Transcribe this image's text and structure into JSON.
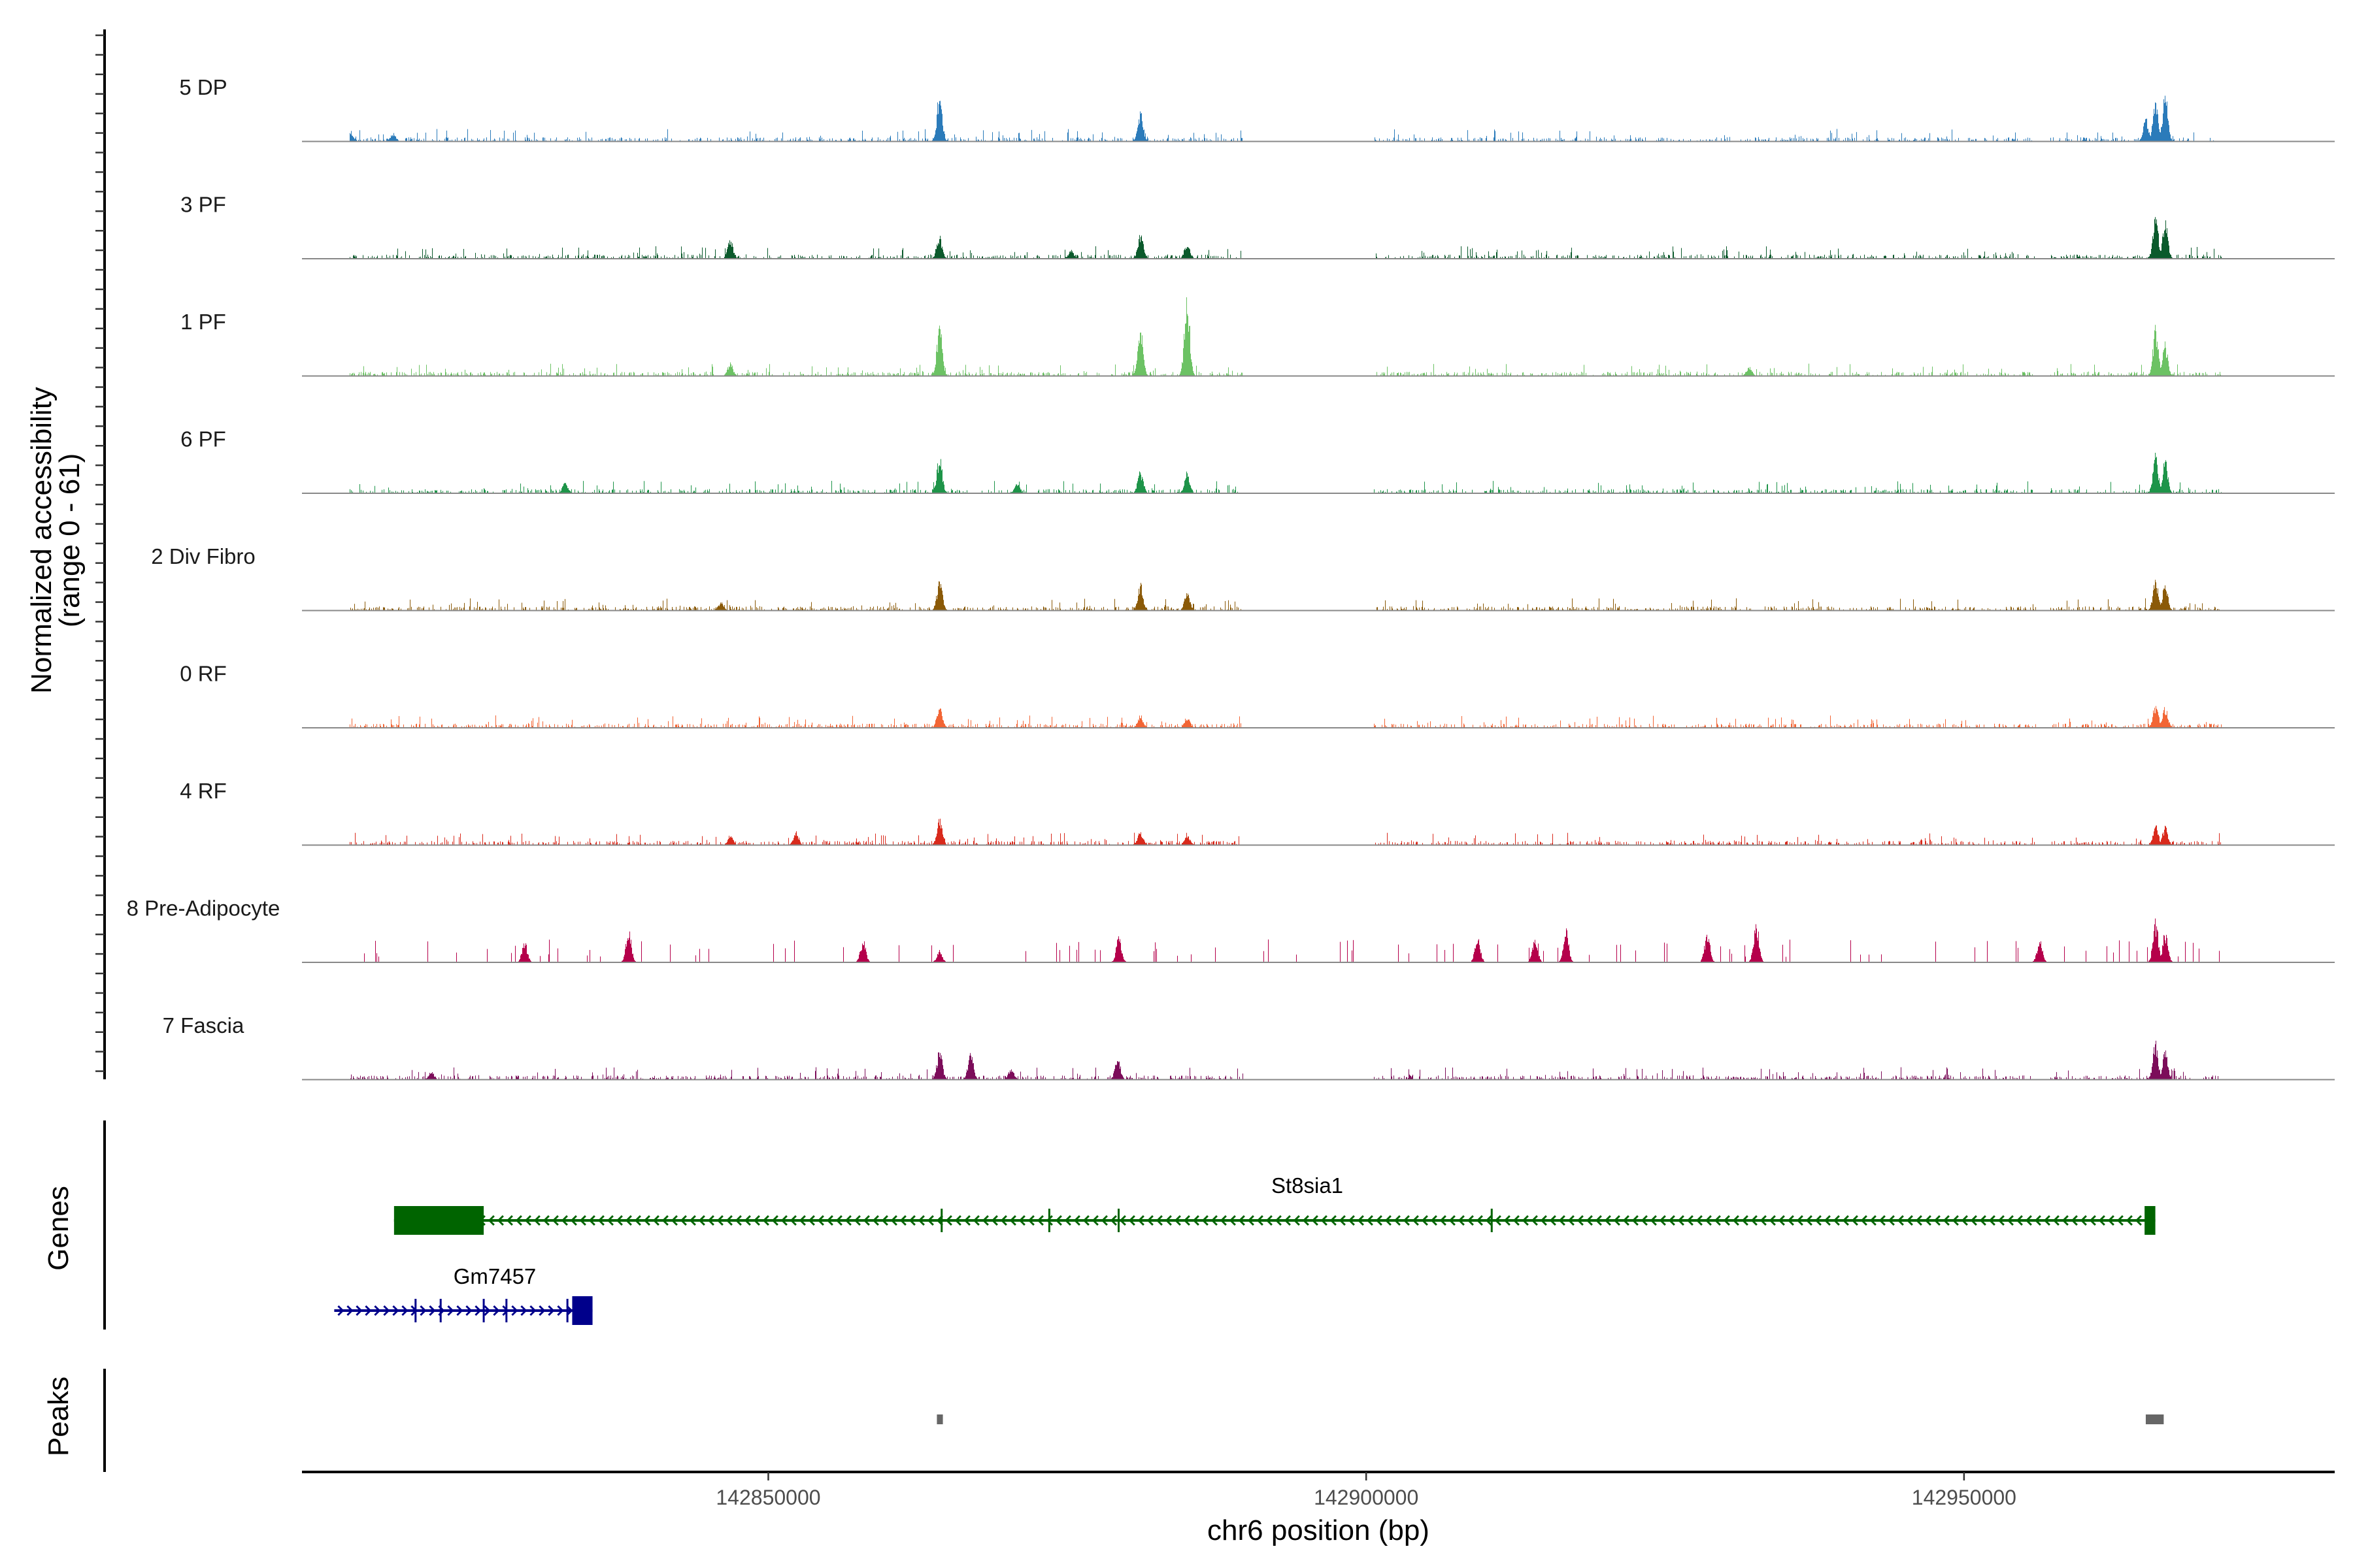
{
  "chart_data": {
    "type": "area",
    "ylabel": "Normalized accessibility",
    "ylabel_range": "(range 0 - 61)",
    "ylim": [
      0,
      61
    ],
    "xlabel": "chr6 position (bp)",
    "xlim": [
      142811000,
      142981000
    ],
    "x_ticks": [
      {
        "value": 142850000,
        "label": "142850000"
      },
      {
        "value": 142900000,
        "label": "142900000"
      },
      {
        "value": 142950000,
        "label": "142950000"
      }
    ],
    "tracks": [
      {
        "name": "5 DP",
        "color": "#2b7bba",
        "seed": 11,
        "peaks": [
          [
            142864300,
            30
          ],
          [
            142881100,
            18
          ],
          [
            142966000,
            25
          ],
          [
            142966800,
            30
          ],
          [
            142965200,
            14
          ],
          [
            142815000,
            7
          ],
          [
            142818600,
            5
          ]
        ]
      },
      {
        "name": "3 PF",
        "color": "#0b5a2c",
        "seed": 23,
        "peaks": [
          [
            142864300,
            14
          ],
          [
            142881100,
            16
          ],
          [
            142885000,
            10
          ],
          [
            142966000,
            27
          ],
          [
            142966800,
            24
          ],
          [
            142846800,
            12
          ],
          [
            142875300,
            5
          ]
        ]
      },
      {
        "name": "1 PF",
        "color": "#6cc264",
        "seed": 37,
        "peaks": [
          [
            142864300,
            32
          ],
          [
            142881100,
            29
          ],
          [
            142885000,
            53
          ],
          [
            142966000,
            30
          ],
          [
            142966800,
            20
          ],
          [
            142846800,
            8
          ],
          [
            142932000,
            6
          ]
        ]
      },
      {
        "name": "6 PF",
        "color": "#1e9449",
        "seed": 41,
        "peaks": [
          [
            142864300,
            24
          ],
          [
            142881100,
            14
          ],
          [
            142885000,
            13
          ],
          [
            142966000,
            24
          ],
          [
            142966800,
            20
          ],
          [
            142833000,
            7
          ],
          [
            142870800,
            6
          ]
        ]
      },
      {
        "name": "2 Div Fibro",
        "color": "#8b5a08",
        "seed": 53,
        "peaks": [
          [
            142864300,
            19
          ],
          [
            142881100,
            16
          ],
          [
            142885000,
            12
          ],
          [
            142966000,
            20
          ],
          [
            142966800,
            16
          ],
          [
            142846000,
            5
          ]
        ]
      },
      {
        "name": "0 RF",
        "color": "#f26535",
        "seed": 61,
        "peaks": [
          [
            142864300,
            14
          ],
          [
            142881100,
            8
          ],
          [
            142885000,
            7
          ],
          [
            142966000,
            15
          ],
          [
            142966800,
            13
          ]
        ]
      },
      {
        "name": "4 RF",
        "color": "#d92a1c",
        "seed": 71,
        "peaks": [
          [
            142864300,
            19
          ],
          [
            142881100,
            8
          ],
          [
            142885000,
            7
          ],
          [
            142966000,
            13
          ],
          [
            142966800,
            11
          ],
          [
            142852300,
            8
          ],
          [
            142846800,
            6
          ]
        ]
      },
      {
        "name": "8 Pre-Adipocyte",
        "color": "#b5004b",
        "seed": 83,
        "peaks": [
          [
            142966000,
            26
          ],
          [
            142966800,
            19
          ],
          [
            142932600,
            26
          ],
          [
            142916700,
            20
          ],
          [
            142914100,
            17
          ],
          [
            142909300,
            17
          ],
          [
            142928500,
            19
          ],
          [
            142838300,
            20
          ],
          [
            142879300,
            16
          ],
          [
            142864300,
            7
          ],
          [
            142956300,
            14
          ],
          [
            142829600,
            13
          ],
          [
            142857900,
            14
          ]
        ]
      },
      {
        "name": "7 Fascia",
        "color": "#7c0d5a",
        "seed": 97,
        "peaks": [
          [
            142864300,
            19
          ],
          [
            142866900,
            18
          ],
          [
            142879200,
            14
          ],
          [
            142966000,
            23
          ],
          [
            142966800,
            17
          ],
          [
            142870300,
            7
          ],
          [
            142821800,
            5
          ]
        ]
      }
    ],
    "genes": [
      {
        "name": "St8sia1",
        "strand": "-",
        "color": "#006400",
        "start": 142818700,
        "end": 142966000,
        "thick": [
          [
            142818700,
            142826200
          ],
          [
            142965100,
            142966000
          ]
        ],
        "exon_marks": [
          142864500,
          142873500,
          142879300,
          142910500
        ]
      },
      {
        "name": "Gm7457",
        "strand": "+",
        "color": "#00008b",
        "start": 142813700,
        "end": 142835300,
        "thick": [
          [
            142833600,
            142835300
          ]
        ],
        "exon_marks": [
          142820500,
          142822600,
          142826200,
          142828100,
          142833200
        ]
      }
    ],
    "gene_track_label": "Genes",
    "peaks_track_label": "Peaks",
    "peaks_regions": [
      [
        142864100,
        142864600
      ],
      [
        142965200,
        142966700
      ]
    ],
    "peaks_color": "#666666",
    "baseline_color": "#888888"
  }
}
